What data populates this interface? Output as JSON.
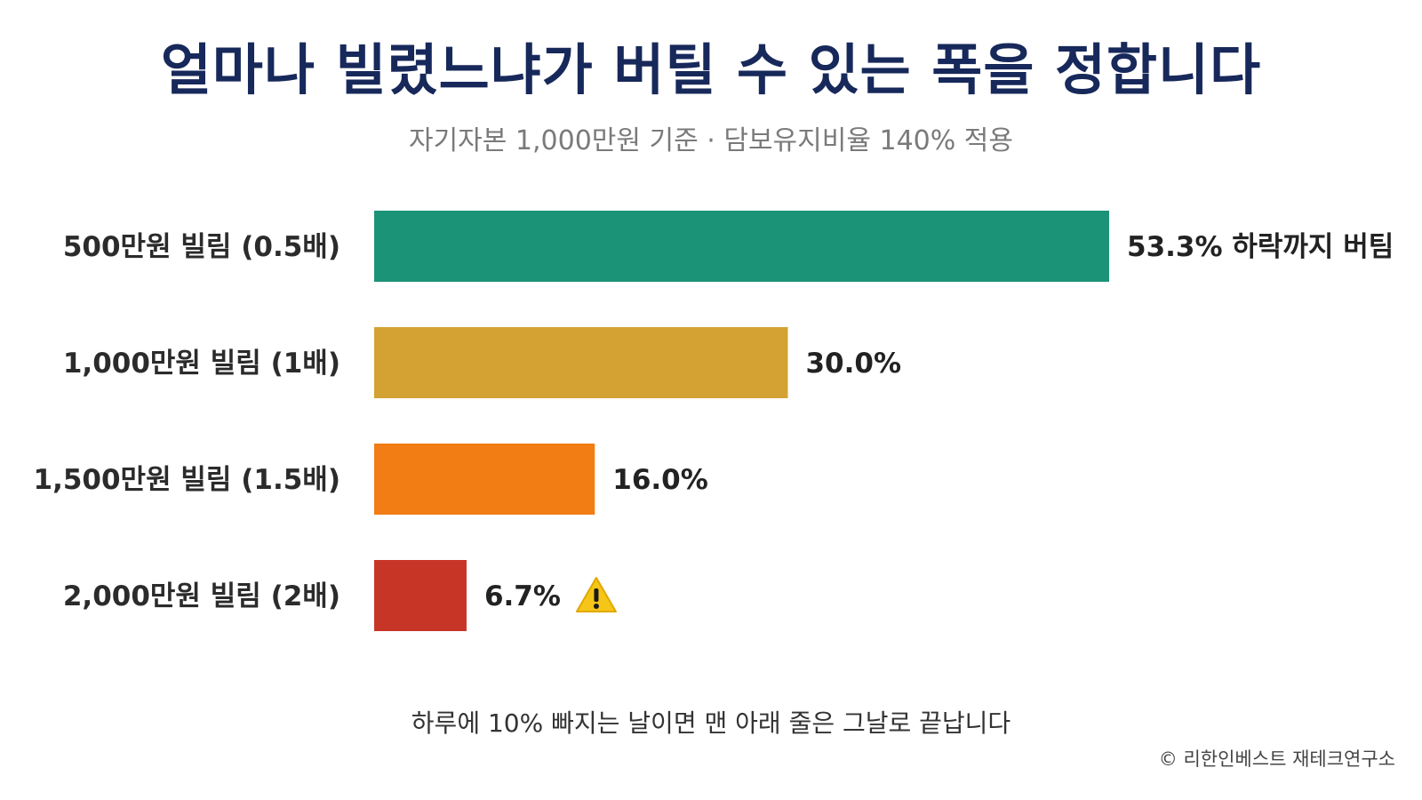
{
  "title": "얼마나 빌렸느냐가 버틸 수 있는 폭을 정합니다",
  "subtitle": "자기자본 1,000만원 기준 · 담보유지비율 140% 적용",
  "footnote": "하루에 10% 빠지는 날이면 맨 아래 줄은 그날로 끝납니다",
  "credit": "© 리한인베스트 재테크연구소",
  "warning_icon": "warning-triangle-icon",
  "chart_data": {
    "type": "bar",
    "orientation": "horizontal",
    "title": "얼마나 빌렸느냐가 버틸 수 있는 폭을 정합니다",
    "subtitle": "자기자본 1,000만원 기준 · 담보유지비율 140% 적용",
    "xlabel": "",
    "ylabel": "",
    "xlim": [
      0,
      53.3
    ],
    "grid": false,
    "legend": "none",
    "categories": [
      "500만원 빌림 (0.5배)",
      "1,000만원 빌림 (1배)",
      "1,500만원 빌림 (1.5배)",
      "2,000만원 빌림 (2배)"
    ],
    "values": [
      53.3,
      30.0,
      16.0,
      6.7
    ],
    "data_labels": [
      "53.3% 하락까지 버팀",
      "30.0%",
      "16.0%",
      "6.7%"
    ],
    "colors": [
      "#1b9377",
      "#d4a232",
      "#f27d14",
      "#c73527"
    ],
    "warning_on_index": 3
  }
}
